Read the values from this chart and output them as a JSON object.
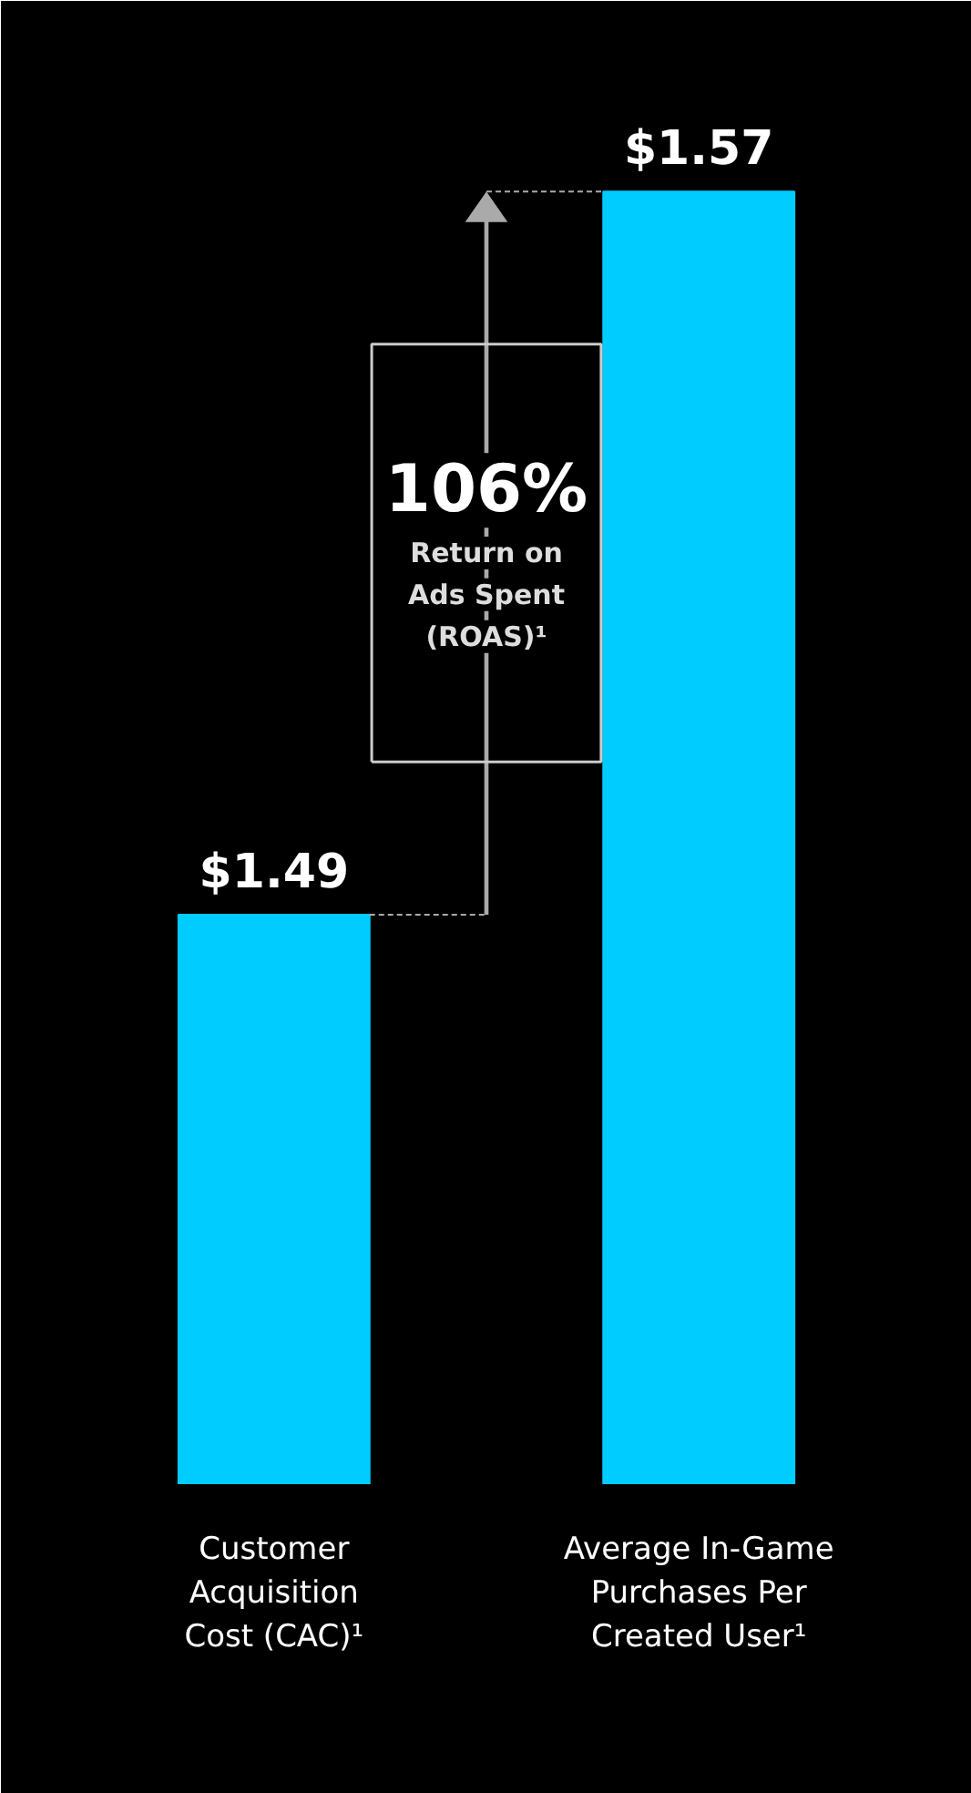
{
  "chart_data": {
    "type": "bar",
    "categories": [
      "Customer Acquisition Cost (CAC)¹",
      "Average In-Game Purchases Per Created User¹"
    ],
    "values": [
      1.49,
      1.57
    ],
    "color": "#00ccff",
    "ylim": [
      1.427,
      1.581
    ],
    "tick_labels": "x",
    "grid": false,
    "data_labels": true,
    "value_labels": [
      "$1.49",
      "$1.57"
    ],
    "annotations": [
      "106%",
      "Return on Ads Spent (ROAS)¹"
    ]
  }
}
